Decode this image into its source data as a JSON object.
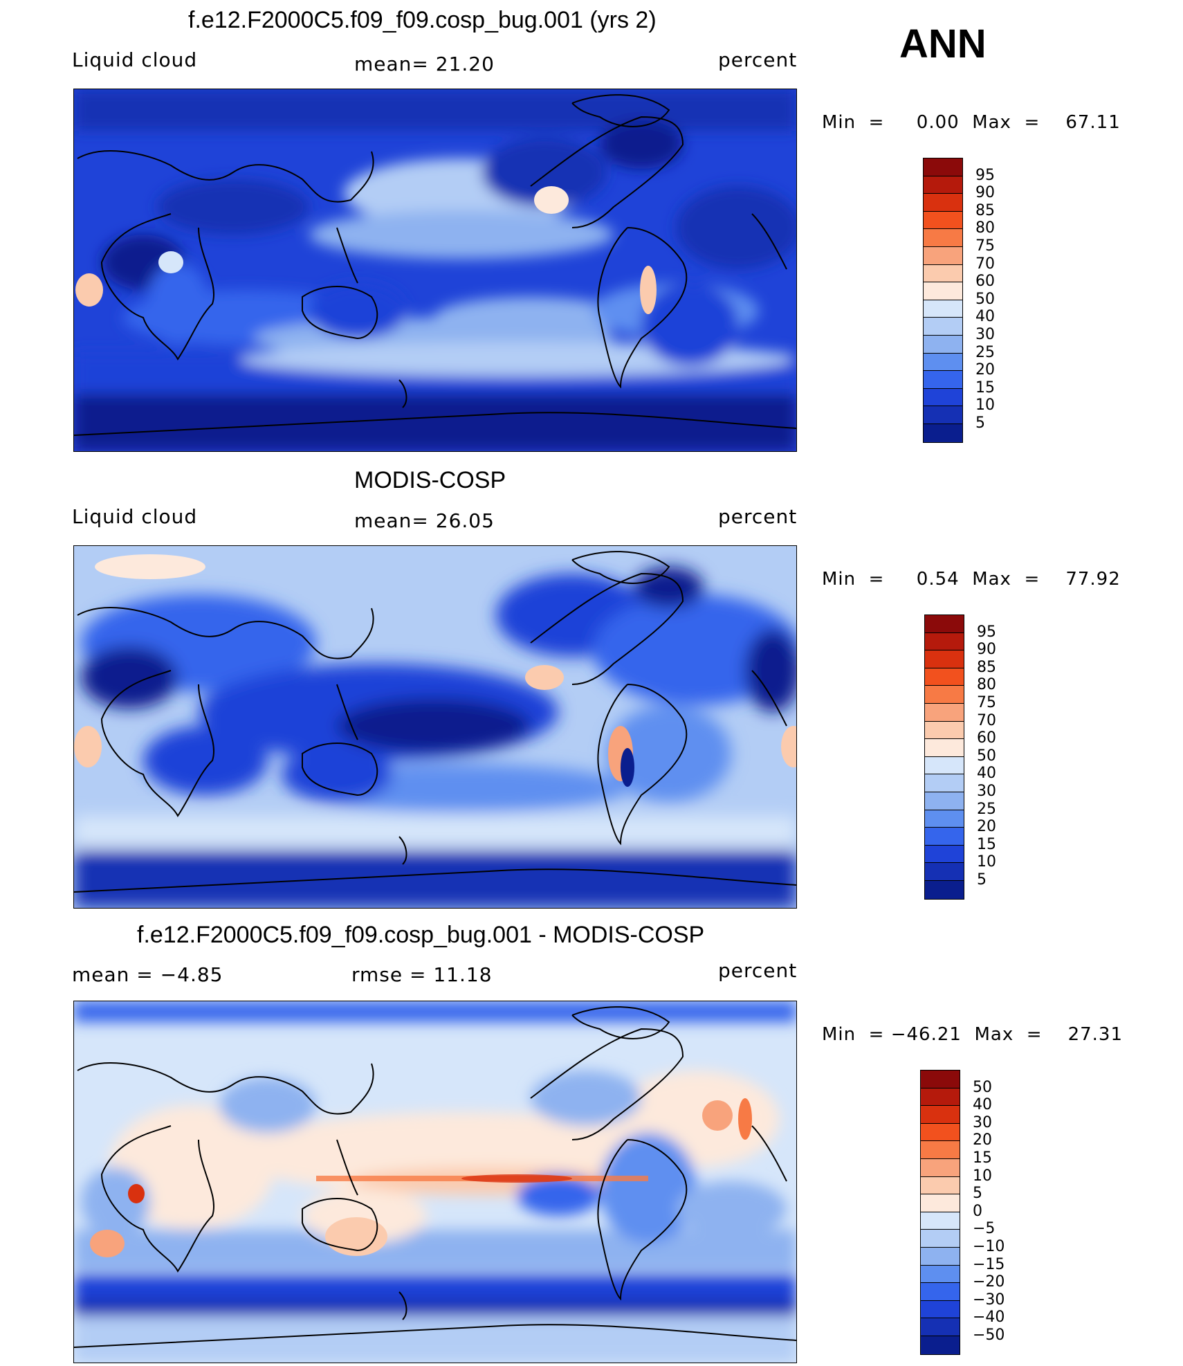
{
  "header": {
    "season": "ANN"
  },
  "panels": [
    {
      "id": "model",
      "title": "f.e12.F2000C5.f09_f09.cosp_bug.001 (yrs 2)",
      "left_label": "Liquid cloud",
      "center_label": "mean=   21.20",
      "right_label": "percent",
      "minmax": "Min  =     0.00  Max  =    67.11"
    },
    {
      "id": "obs",
      "title": "MODIS-COSP",
      "left_label": "Liquid cloud",
      "center_label": "mean=   26.05",
      "right_label": "percent",
      "minmax": "Min  =     0.54  Max  =    77.92"
    },
    {
      "id": "diff",
      "title": "f.e12.F2000C5.f09_f09.cosp_bug.001 - MODIS-COSP",
      "left_label": "mean  =    −4.85",
      "center_label": "rmse  =    11.18",
      "right_label": "percent",
      "minmax": "Min  = −46.21  Max  =    27.31"
    }
  ],
  "chart_data": [
    {
      "type": "heatmap",
      "title": "f.e12.F2000C5.f09_f09.cosp_bug.001 (yrs 2)",
      "variable": "Liquid cloud",
      "units": "percent",
      "mean": 21.2,
      "min": 0.0,
      "max": 67.11,
      "colorbar_levels": [
        "95",
        "90",
        "85",
        "80",
        "75",
        "70",
        "60",
        "50",
        "40",
        "30",
        "25",
        "20",
        "15",
        "10",
        "5"
      ],
      "colorbar_colors": [
        "#8b0a0a",
        "#b51a0c",
        "#d9310f",
        "#f2511e",
        "#f77a45",
        "#f8a37c",
        "#fbcbae",
        "#fde9dc",
        "#d6e6fa",
        "#b3cdf5",
        "#8eb2f0",
        "#5e8ff0",
        "#3565ec",
        "#1f43d8",
        "#1530b4",
        "#0a1e8e"
      ]
    },
    {
      "type": "heatmap",
      "title": "MODIS-COSP",
      "variable": "Liquid cloud",
      "units": "percent",
      "mean": 26.05,
      "min": 0.54,
      "max": 77.92,
      "colorbar_levels": [
        "95",
        "90",
        "85",
        "80",
        "75",
        "70",
        "60",
        "50",
        "40",
        "30",
        "25",
        "20",
        "15",
        "10",
        "5"
      ],
      "colorbar_colors": [
        "#8b0a0a",
        "#b51a0c",
        "#d9310f",
        "#f2511e",
        "#f77a45",
        "#f8a37c",
        "#fbcbae",
        "#fde9dc",
        "#d6e6fa",
        "#b3cdf5",
        "#8eb2f0",
        "#5e8ff0",
        "#3565ec",
        "#1f43d8",
        "#1530b4",
        "#0a1e8e"
      ]
    },
    {
      "type": "heatmap",
      "title": "f.e12.F2000C5.f09_f09.cosp_bug.001 - MODIS-COSP",
      "units": "percent",
      "mean": -4.85,
      "rmse": 11.18,
      "min": -46.21,
      "max": 27.31,
      "colorbar_levels": [
        "50",
        "40",
        "30",
        "20",
        "15",
        "10",
        "5",
        "0",
        "−5",
        "−10",
        "−15",
        "−20",
        "−30",
        "−40",
        "−50"
      ],
      "colorbar_colors": [
        "#8b0a0a",
        "#b51a0c",
        "#d9310f",
        "#f2511e",
        "#f77a45",
        "#f8a37c",
        "#fbcbae",
        "#fde9dc",
        "#d6e6fa",
        "#b3cdf5",
        "#8eb2f0",
        "#5e8ff0",
        "#3565ec",
        "#1f43d8",
        "#1530b4",
        "#0a1e8e"
      ]
    }
  ]
}
